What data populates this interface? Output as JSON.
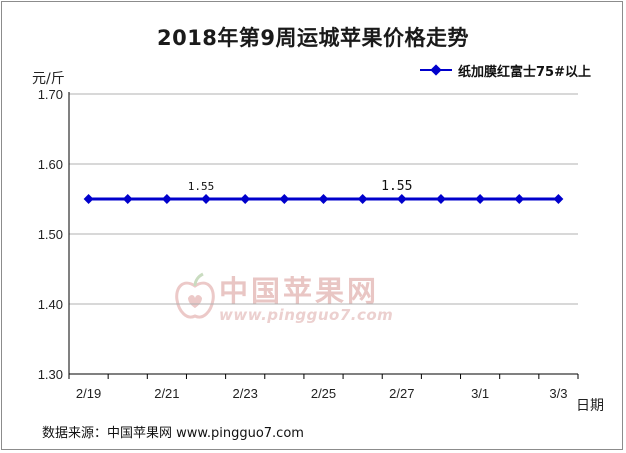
{
  "title": "2018年第9周运城苹果价格走势",
  "source": "数据来源：中国苹果网 www.pingguo7.com",
  "watermark": {
    "name": "中国苹果网",
    "url": "www.pingguo7.com"
  },
  "colors": {
    "series": "#0000cc",
    "axis": "#000000",
    "grid": "#b0b0b0",
    "title": "#1a1a1a"
  },
  "chart_data": {
    "type": "line",
    "title": "2018年第9周运城苹果价格走势",
    "ylabel": "元/斤",
    "xlabel": "日期",
    "ylim": [
      1.3,
      1.7
    ],
    "yticks": [
      "1.70",
      "1.60",
      "1.50",
      "1.40",
      "1.30"
    ],
    "grid": true,
    "legend": "top-right",
    "x": [
      "2/19",
      "2/20",
      "2/21",
      "2/22",
      "2/23",
      "2/24",
      "2/25",
      "2/26",
      "2/27",
      "2/28",
      "3/1",
      "3/2",
      "3/3"
    ],
    "x_tick_labels": [
      "2/19",
      "2/21",
      "2/23",
      "2/25",
      "2/27",
      "3/1",
      "3/3"
    ],
    "series": [
      {
        "name": "纸加膜红富士75#以上",
        "values": [
          1.55,
          1.55,
          1.55,
          1.55,
          1.55,
          1.55,
          1.55,
          1.55,
          1.55,
          1.55,
          1.55,
          1.55,
          1.55
        ]
      }
    ],
    "annotations": [
      {
        "x": "2/22",
        "text": "1.55"
      },
      {
        "x": "2/27",
        "text": "1.55"
      }
    ]
  }
}
